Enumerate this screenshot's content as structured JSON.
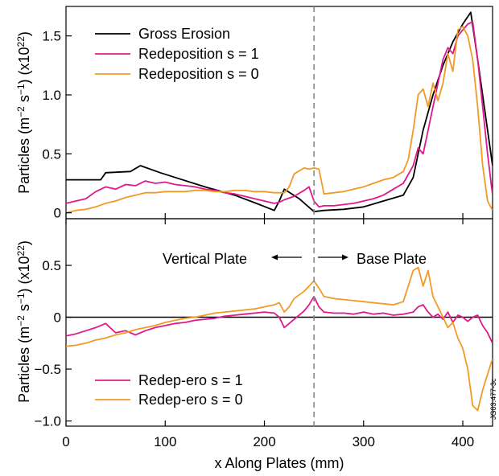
{
  "figure_id": "JG03.477-3c",
  "x_label": "x Along Plates (mm)",
  "x_ticks": [
    0,
    100,
    200,
    300,
    400
  ],
  "x_range": [
    0,
    430
  ],
  "divider_x": 250,
  "colors": {
    "black": "#000000",
    "magenta": "#e0188c",
    "orange": "#f29a26",
    "divider": "#888888"
  },
  "chart_data": [
    {
      "type": "line",
      "name": "top-panel",
      "ylabel": "Particles (m⁻² s⁻¹) (x10²²)",
      "ylim": [
        -0.05,
        1.75
      ],
      "y_ticks": [
        0,
        0.5,
        1.0,
        1.5
      ],
      "y_tick_labels": [
        "0",
        "0.5",
        "1.0",
        "1.5"
      ],
      "legend_position": "top-left",
      "series": [
        {
          "name": "Gross Erosion",
          "color": "#000000",
          "x": [
            0,
            35,
            40,
            65,
            75,
            95,
            110,
            140,
            170,
            195,
            210,
            215,
            220,
            235,
            250,
            260,
            280,
            300,
            320,
            340,
            350,
            360,
            370,
            380,
            390,
            400,
            408,
            415,
            425,
            430
          ],
          "y": [
            0.28,
            0.28,
            0.34,
            0.35,
            0.4,
            0.34,
            0.3,
            0.22,
            0.15,
            0.07,
            0.02,
            0.1,
            0.2,
            0.12,
            0.01,
            0.02,
            0.03,
            0.05,
            0.1,
            0.15,
            0.3,
            0.7,
            1.0,
            1.25,
            1.45,
            1.6,
            1.7,
            1.3,
            0.7,
            0.4
          ]
        },
        {
          "name": "Redeposition s = 1",
          "color": "#e0188c",
          "x": [
            0,
            10,
            20,
            30,
            40,
            50,
            60,
            70,
            80,
            90,
            100,
            110,
            120,
            130,
            140,
            150,
            160,
            170,
            180,
            190,
            200,
            210,
            215,
            220,
            230,
            240,
            245,
            250,
            255,
            260,
            270,
            280,
            290,
            300,
            310,
            320,
            330,
            340,
            350,
            355,
            360,
            365,
            370,
            375,
            380,
            385,
            390,
            395,
            400,
            405,
            410,
            415,
            420,
            425,
            430
          ],
          "y": [
            0.08,
            0.1,
            0.12,
            0.18,
            0.22,
            0.2,
            0.24,
            0.23,
            0.27,
            0.25,
            0.26,
            0.24,
            0.23,
            0.22,
            0.2,
            0.19,
            0.17,
            0.16,
            0.14,
            0.12,
            0.1,
            0.08,
            0.09,
            0.11,
            0.14,
            0.19,
            0.22,
            0.1,
            0.05,
            0.06,
            0.06,
            0.07,
            0.08,
            0.1,
            0.12,
            0.15,
            0.2,
            0.25,
            0.4,
            0.55,
            0.5,
            0.7,
            0.9,
            1.1,
            1.3,
            1.4,
            1.35,
            1.5,
            1.55,
            1.6,
            1.62,
            1.3,
            0.9,
            0.5,
            0.15
          ]
        },
        {
          "name": "Redeposition s = 0",
          "color": "#f29a26",
          "x": [
            0,
            10,
            20,
            30,
            40,
            50,
            60,
            70,
            80,
            90,
            100,
            110,
            120,
            130,
            140,
            150,
            160,
            170,
            180,
            190,
            200,
            210,
            220,
            225,
            230,
            240,
            245,
            250,
            255,
            260,
            270,
            280,
            290,
            300,
            310,
            320,
            330,
            340,
            345,
            350,
            355,
            360,
            365,
            370,
            375,
            380,
            385,
            390,
            395,
            400,
            405,
            410,
            415,
            420,
            425,
            430
          ],
          "y": [
            0.0,
            0.02,
            0.03,
            0.05,
            0.08,
            0.1,
            0.13,
            0.15,
            0.17,
            0.17,
            0.18,
            0.18,
            0.18,
            0.19,
            0.19,
            0.18,
            0.18,
            0.19,
            0.19,
            0.18,
            0.18,
            0.17,
            0.17,
            0.22,
            0.33,
            0.38,
            0.37,
            0.38,
            0.37,
            0.16,
            0.17,
            0.18,
            0.2,
            0.22,
            0.25,
            0.28,
            0.3,
            0.35,
            0.45,
            0.7,
            1.0,
            1.05,
            0.9,
            1.1,
            0.95,
            1.1,
            1.35,
            1.2,
            1.55,
            1.58,
            1.5,
            1.3,
            0.9,
            0.4,
            0.1,
            0.02
          ]
        }
      ]
    },
    {
      "type": "line",
      "name": "bottom-panel",
      "ylabel": "Particles (m⁻² s⁻¹) (x10²²)",
      "ylim": [
        -1.05,
        0.95
      ],
      "y_ticks": [
        -1.0,
        -0.5,
        0,
        0.5
      ],
      "y_tick_labels": [
        "−1.0",
        "−0.5",
        "0",
        "0.5"
      ],
      "legend_position": "bottom-left",
      "annotations": {
        "left": "Vertical Plate",
        "right": "Base Plate"
      },
      "series": [
        {
          "name": "Redep-ero s = 1",
          "color": "#e0188c",
          "x": [
            0,
            10,
            20,
            30,
            40,
            50,
            60,
            70,
            80,
            90,
            100,
            110,
            120,
            130,
            140,
            150,
            160,
            170,
            180,
            190,
            200,
            210,
            215,
            220,
            230,
            240,
            245,
            250,
            255,
            260,
            270,
            280,
            290,
            300,
            310,
            320,
            330,
            340,
            350,
            355,
            360,
            365,
            370,
            375,
            380,
            385,
            390,
            395,
            400,
            405,
            410,
            415,
            420,
            425,
            430
          ],
          "y": [
            -0.18,
            -0.16,
            -0.13,
            -0.1,
            -0.06,
            -0.15,
            -0.13,
            -0.17,
            -0.13,
            -0.1,
            -0.08,
            -0.06,
            -0.05,
            -0.03,
            -0.02,
            -0.01,
            0.01,
            0.02,
            0.03,
            0.04,
            0.05,
            0.04,
            0.0,
            -0.1,
            -0.02,
            0.06,
            0.12,
            0.2,
            0.1,
            0.05,
            0.04,
            0.04,
            0.03,
            0.05,
            0.03,
            0.04,
            0.02,
            0.03,
            0.05,
            0.1,
            0.12,
            0.05,
            0.0,
            0.03,
            -0.02,
            0.05,
            -0.05,
            0.02,
            0.0,
            -0.04,
            0.0,
            0.02,
            -0.08,
            -0.15,
            -0.25
          ]
        },
        {
          "name": "Redep-ero s = 0",
          "color": "#f29a26",
          "x": [
            0,
            10,
            20,
            30,
            40,
            50,
            60,
            70,
            80,
            90,
            100,
            110,
            120,
            130,
            140,
            150,
            160,
            170,
            180,
            190,
            200,
            210,
            215,
            220,
            225,
            230,
            240,
            245,
            250,
            255,
            260,
            270,
            280,
            290,
            300,
            310,
            320,
            330,
            340,
            345,
            350,
            355,
            360,
            365,
            370,
            375,
            380,
            385,
            390,
            395,
            400,
            405,
            410,
            415,
            420,
            425,
            430
          ],
          "y": [
            -0.28,
            -0.27,
            -0.25,
            -0.22,
            -0.2,
            -0.17,
            -0.15,
            -0.12,
            -0.1,
            -0.08,
            -0.05,
            -0.03,
            -0.01,
            0.0,
            0.02,
            0.04,
            0.05,
            0.06,
            0.07,
            0.08,
            0.1,
            0.12,
            0.14,
            0.05,
            0.1,
            0.18,
            0.25,
            0.3,
            0.35,
            0.28,
            0.2,
            0.18,
            0.17,
            0.16,
            0.15,
            0.14,
            0.13,
            0.12,
            0.15,
            0.3,
            0.45,
            0.48,
            0.3,
            0.45,
            0.2,
            0.1,
            0.0,
            -0.1,
            -0.05,
            -0.2,
            -0.3,
            -0.5,
            -0.85,
            -0.9,
            -0.7,
            -0.55,
            -0.4
          ]
        }
      ]
    }
  ]
}
